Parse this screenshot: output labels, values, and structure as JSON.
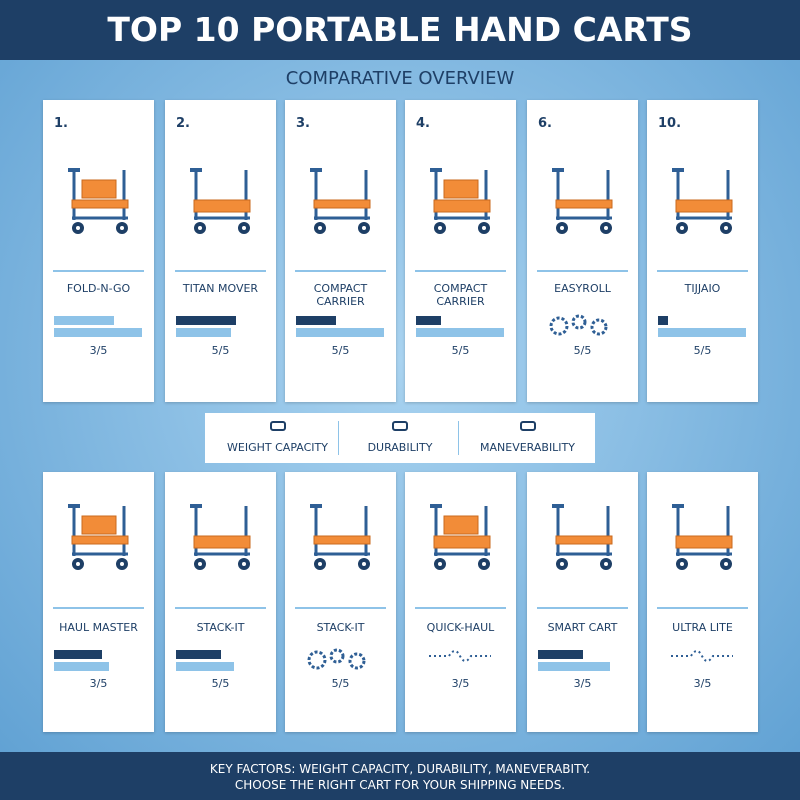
{
  "header": {
    "title": "TOP 10 PORTABLE HAND CARTS"
  },
  "subtitle": "COMPARATIVE OVERVIEW",
  "cards": [
    {
      "number": "1.",
      "name": "FOLD-N-GO",
      "rating": "3/5"
    },
    {
      "number": "2.",
      "name": "TITAN MOVER",
      "rating": "5/5"
    },
    {
      "number": "3.",
      "name": "COMPACT CARRIER",
      "rating": "5/5"
    },
    {
      "number": "4.",
      "name": "COMPACT CARRIER",
      "rating": "5/5"
    },
    {
      "number": "6.",
      "name": "EASYROLL",
      "rating": "5/5"
    },
    {
      "number": "10.",
      "name": "TIJJAIO",
      "rating": "5/5"
    },
    {
      "name": "HAUL MASTER",
      "rating": "3/5"
    },
    {
      "name": "STACK-IT",
      "rating": "5/5"
    },
    {
      "name": "STACK-IT",
      "rating": "5/5"
    },
    {
      "name": "QUICK-HAUL",
      "rating": "3/5"
    },
    {
      "name": "SMART CART",
      "rating": "3/5"
    },
    {
      "name": "ULTRA LITE",
      "rating": "3/5"
    }
  ],
  "legend": [
    "WEIGHT CAPACITY",
    "DURABILITY",
    "MANEVERABILITY"
  ],
  "footer": {
    "lines": [
      "KEY FACTORS: WEIGHT CAPACITY, DURABILITY, MANEVERABITY.",
      "CHOOSE THE RIGHT CART FOR YOUR SHIPPING NEEDS."
    ]
  }
}
